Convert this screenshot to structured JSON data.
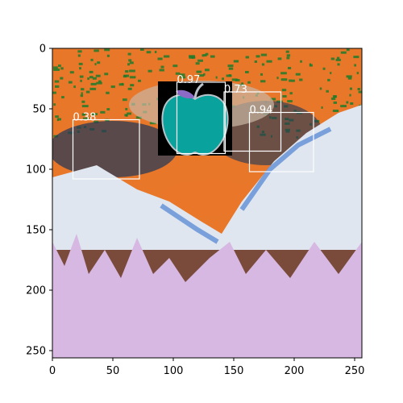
{
  "chart_data": {
    "type": "image",
    "xlim": [
      0,
      256
    ],
    "ylim": [
      256,
      0
    ],
    "x_ticks": [
      0,
      50,
      100,
      150,
      200,
      250
    ],
    "y_ticks": [
      0,
      50,
      100,
      150,
      200,
      250
    ],
    "box_color": "#ffffff",
    "detections": [
      {
        "label": "0.97",
        "x": [
          103,
          143
        ],
        "y": [
          28,
          87
        ]
      },
      {
        "label": "0.73",
        "x": [
          142,
          189
        ],
        "y": [
          36,
          85
        ]
      },
      {
        "label": "0.38",
        "x": [
          17,
          72
        ],
        "y": [
          59,
          108
        ]
      },
      {
        "label": "0.94",
        "x": [
          163,
          216
        ],
        "y": [
          53,
          102
        ]
      }
    ],
    "scene": {
      "sky_color": "#e9772a",
      "speckle_color": "#1f7a2a",
      "mountain_color": "#dfe6ef",
      "ridge_color": "#5f8fd6",
      "lake_color": "#7a4a3a",
      "forest_color": "#d6b8e3",
      "apple_color": "#0aa29c",
      "apple_bg_color": "#000000",
      "leaf_color": "#8c6bc7"
    }
  }
}
